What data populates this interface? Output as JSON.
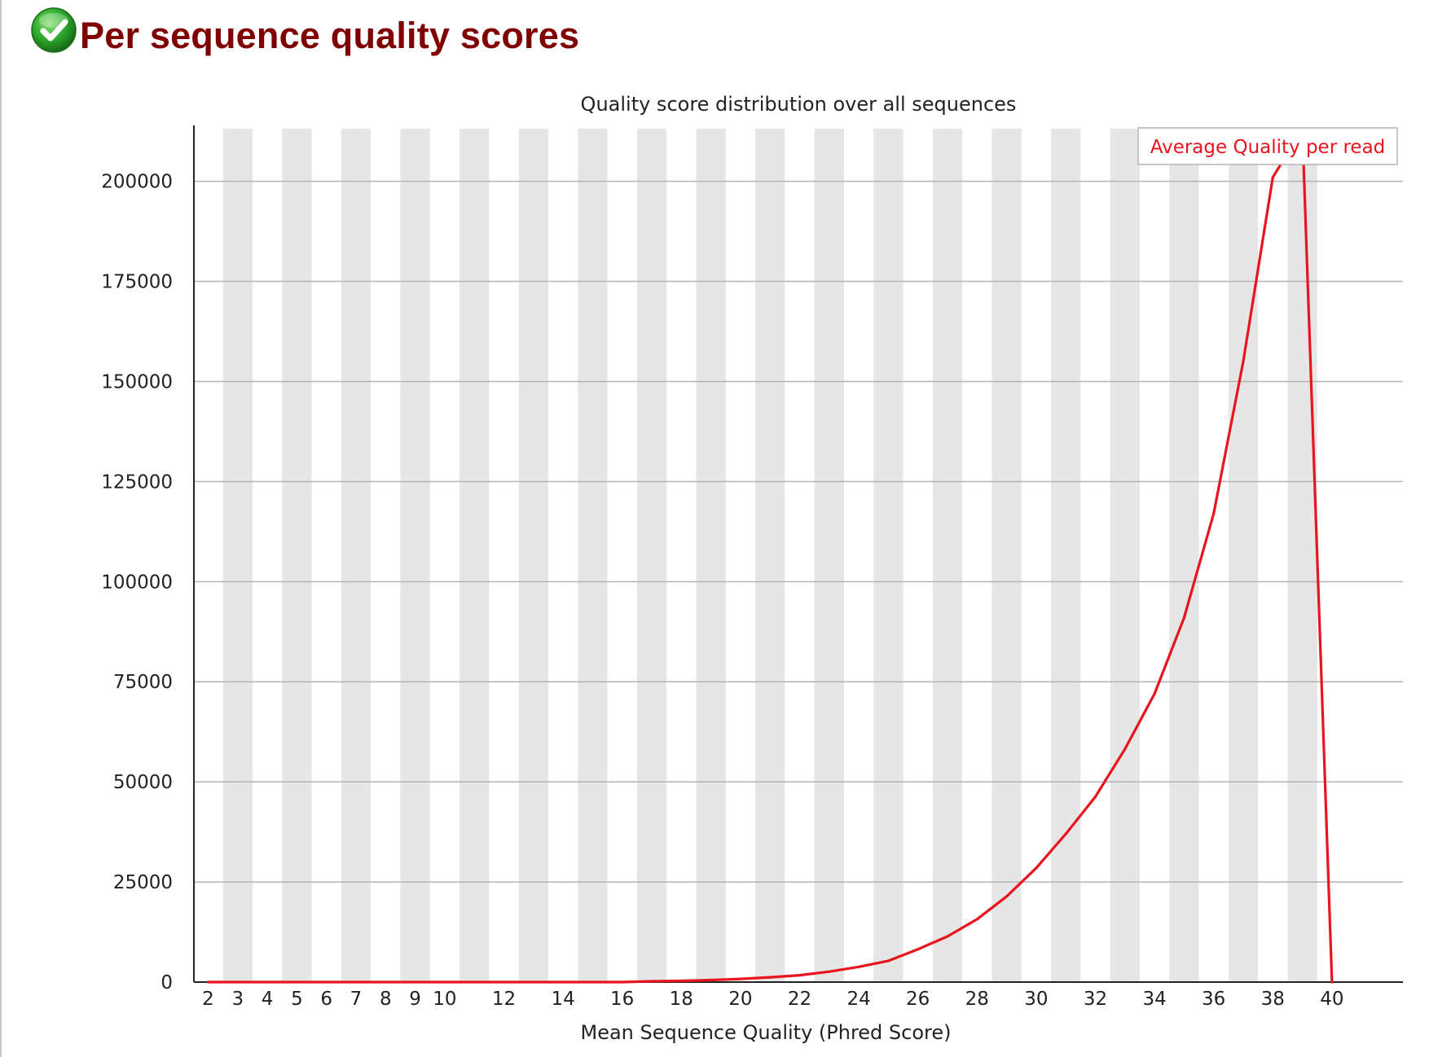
{
  "header": {
    "title": "Per sequence quality scores",
    "status_icon": "check-circle-icon",
    "status_color": "#2eab2e"
  },
  "chart_data": {
    "type": "line",
    "title": "Quality score distribution over all sequences",
    "xlabel": "Mean Sequence Quality (Phred Score)",
    "ylabel": "",
    "xlim": [
      2,
      40
    ],
    "ylim": [
      0,
      213000
    ],
    "grid": true,
    "legend_position": "top-right",
    "x_tick_labels": [
      "2",
      "3",
      "4",
      "5",
      "6",
      "7",
      "8",
      "9",
      "10",
      "12",
      "14",
      "16",
      "18",
      "20",
      "22",
      "24",
      "26",
      "28",
      "30",
      "32",
      "34",
      "36",
      "38",
      "40"
    ],
    "y_tick_labels": [
      "0",
      "25000",
      "50000",
      "75000",
      "100000",
      "125000",
      "150000",
      "175000",
      "200000"
    ],
    "x": [
      2,
      3,
      4,
      5,
      6,
      7,
      8,
      9,
      10,
      11,
      12,
      13,
      14,
      15,
      16,
      17,
      18,
      19,
      20,
      21,
      22,
      23,
      24,
      25,
      26,
      27,
      28,
      29,
      30,
      31,
      32,
      33,
      34,
      35,
      36,
      37,
      38,
      39,
      40
    ],
    "series": [
      {
        "name": "Average Quality per read",
        "color": "#e8141e",
        "values": [
          0,
          0,
          0,
          0,
          0,
          0,
          0,
          0,
          0,
          0,
          0,
          0,
          0,
          0,
          0,
          200,
          300,
          500,
          800,
          1200,
          1700,
          2600,
          3800,
          5300,
          8200,
          11400,
          15700,
          21400,
          28500,
          37000,
          46300,
          58200,
          72000,
          91000,
          117000,
          155000,
          201000,
          213000,
          0
        ]
      }
    ]
  }
}
